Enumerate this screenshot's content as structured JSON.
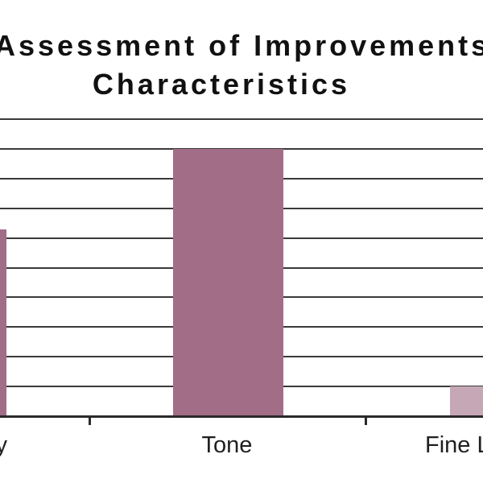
{
  "title": {
    "line1": "Assessment of Improvements",
    "line2": "Characteristics"
  },
  "x_labels": {
    "first": "Clarity",
    "second": "Tone",
    "third": "Fine Lines"
  },
  "colors": {
    "bar_primary": "#a26d86",
    "bar_light": "#c6a7b6",
    "gridline": "#3a3a3a",
    "axis": "#2a2a2a",
    "title_text": "#111111",
    "label_text": "#1f1f1f",
    "background": "#ffffff"
  },
  "chart_data": {
    "type": "bar",
    "title": "Assessment of Improvements Characteristics",
    "categories": [
      "Clarity",
      "Tone",
      "Fine Lines"
    ],
    "categories_visible": [
      "…y",
      "Tone",
      "Fine L…"
    ],
    "values": [
      6.3,
      9,
      1
    ],
    "bar_colors": [
      "#a26d86",
      "#a26d86",
      "#c6a7b6"
    ],
    "ylim": [
      0,
      10
    ],
    "gridline_step": 1,
    "grid": "horizontal",
    "legend": "none",
    "notes": "Cropped view of a wider chart: y-axis tick labels are outside the frame; first and third bars/labels are cut by the image edges."
  }
}
